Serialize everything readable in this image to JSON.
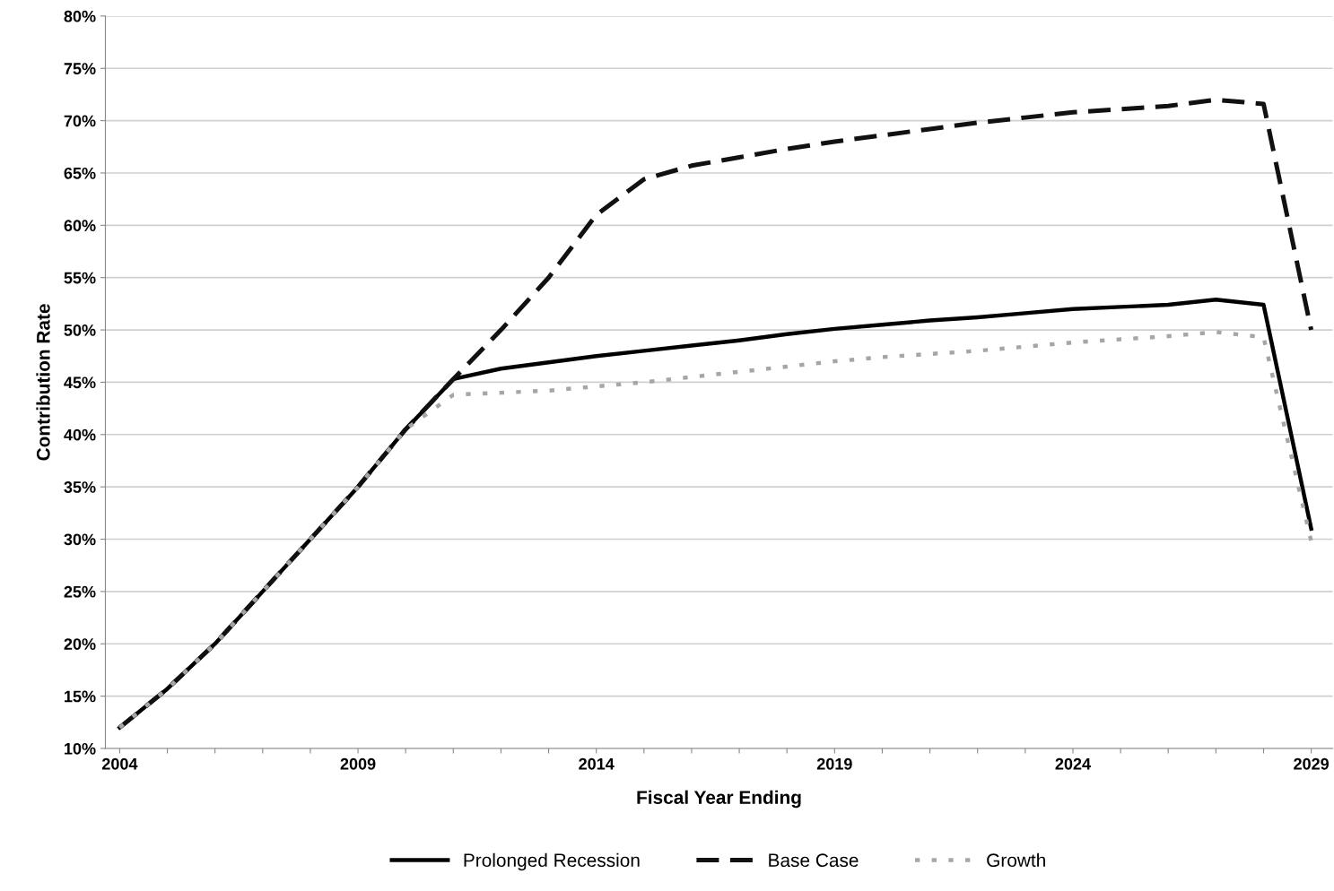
{
  "chart_data": {
    "type": "line",
    "xlabel": "Fiscal Year Ending",
    "ylabel": "Contribution Rate",
    "x": [
      2004,
      2005,
      2006,
      2007,
      2008,
      2009,
      2010,
      2011,
      2012,
      2013,
      2014,
      2015,
      2016,
      2017,
      2018,
      2019,
      2020,
      2021,
      2022,
      2023,
      2024,
      2025,
      2026,
      2027,
      2028,
      2029
    ],
    "series": [
      {
        "name": "Prolonged Recession",
        "color": "#000000",
        "line_style": "solid",
        "values": [
          12,
          15.7,
          20,
          25,
          30,
          35,
          40.5,
          45.3,
          46.3,
          46.9,
          47.5,
          48,
          48.5,
          49,
          49.6,
          50.1,
          50.5,
          50.9,
          51.2,
          51.6,
          52,
          52.2,
          52.4,
          52.9,
          52.4,
          31
        ]
      },
      {
        "name": "Base Case",
        "color": "#111111",
        "line_style": "dashed",
        "values": [
          12,
          15.7,
          20,
          25,
          30,
          35,
          40.5,
          45.3,
          50,
          55,
          61,
          64.4,
          65.7,
          66.5,
          67.3,
          68,
          68.6,
          69.2,
          69.8,
          70.3,
          70.8,
          71.1,
          71.4,
          72,
          71.6,
          50
        ]
      },
      {
        "name": "Growth",
        "color": "#a6a6a6",
        "line_style": "dotted",
        "values": [
          12,
          15.7,
          20,
          25,
          30,
          35,
          40.5,
          43.8,
          44,
          44.2,
          44.6,
          45,
          45.5,
          46,
          46.5,
          47,
          47.4,
          47.7,
          48,
          48.4,
          48.8,
          49.1,
          49.4,
          49.8,
          49.3,
          29.8
        ]
      }
    ],
    "xlim": [
      2003.7,
      2029.45
    ],
    "xticks": [
      2004,
      {
        "value": 2005,
        "label": null
      },
      {
        "value": 2006,
        "label": null
      },
      {
        "value": 2007,
        "label": null
      },
      {
        "value": 2008,
        "label": null
      },
      2009,
      {
        "value": 2010,
        "label": null
      },
      {
        "value": 2011,
        "label": null
      },
      {
        "value": 2012,
        "label": null
      },
      {
        "value": 2013,
        "label": null
      },
      2014,
      {
        "value": 2015,
        "label": null
      },
      {
        "value": 2016,
        "label": null
      },
      {
        "value": 2017,
        "label": null
      },
      {
        "value": 2018,
        "label": null
      },
      2019,
      {
        "value": 2020,
        "label": null
      },
      {
        "value": 2021,
        "label": null
      },
      {
        "value": 2022,
        "label": null
      },
      {
        "value": 2023,
        "label": null
      },
      2024,
      {
        "value": 2025,
        "label": null
      },
      {
        "value": 2026,
        "label": null
      },
      {
        "value": 2027,
        "label": null
      },
      {
        "value": 2028,
        "label": null
      },
      2029
    ],
    "ylim": [
      10,
      80
    ],
    "yticks": [
      {
        "value": 10,
        "label": "10%"
      },
      {
        "value": 15,
        "label": "15%"
      },
      {
        "value": 20,
        "label": "20%"
      },
      {
        "value": 25,
        "label": "25%"
      },
      {
        "value": 30,
        "label": "30%"
      },
      {
        "value": 35,
        "label": "35%"
      },
      {
        "value": 40,
        "label": "40%"
      },
      {
        "value": 45,
        "label": "45%"
      },
      {
        "value": 50,
        "label": "50%"
      },
      {
        "value": 55,
        "label": "55%"
      },
      {
        "value": 60,
        "label": "60%"
      },
      {
        "value": 65,
        "label": "65%"
      },
      {
        "value": 70,
        "label": "70%"
      },
      {
        "value": 75,
        "label": "75%"
      },
      {
        "value": 80,
        "label": "80%"
      }
    ],
    "grid": "y",
    "legend": "bottom",
    "marker": "none"
  }
}
